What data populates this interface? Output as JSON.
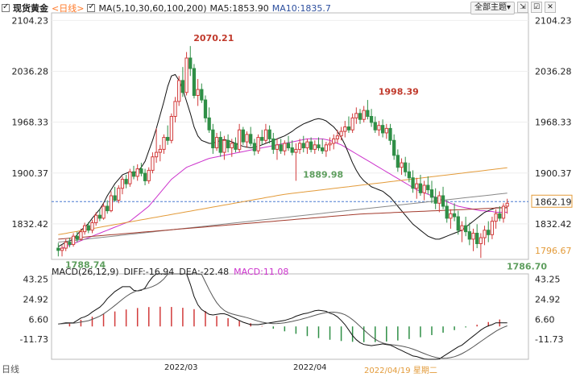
{
  "header": {
    "title": "现货黄金",
    "period": "<日线>",
    "ma_label": "MA(5,10,30,60,100,200)",
    "ma5": "MA5:1853.90",
    "ma10": "MA10:1835.7"
  },
  "toolbar": {
    "theme_label": "全部主题",
    "theme_arrow": "▾"
  },
  "icons": [
    "expand-icon",
    "checkbox-icon",
    "close-icon"
  ],
  "macd_header": {
    "label": "MACD(26,12,9)",
    "diff": "DIFF:-16.94",
    "dea": "DEA:-22.48",
    "macd": "MACD:11.08"
  },
  "bottom": {
    "period_label": "日线",
    "date": "2022/04/19 星期二"
  },
  "colors": {
    "up": "#d23b3b",
    "down": "#2f8f46",
    "ma5": "#111111",
    "ma10": "#3d5a99",
    "ma30": "#cc33cc",
    "ma60": "#e39b3a",
    "ma100": "#888888",
    "ma200": "#a33a2c",
    "macd_pos": "#d23b3b",
    "macd_neg": "#2f8f46"
  },
  "chart_data": {
    "type": "candlestick",
    "title": "现货黄金",
    "y_ticks": [
      "2104.23",
      "2036.28",
      "1968.33",
      "1900.37",
      "1832.42"
    ],
    "ylim": [
      1785,
      2110
    ],
    "x_labels": [
      "2022/03",
      "2022/04"
    ],
    "annotations": [
      {
        "text": "2070.21",
        "value": 2070.21,
        "index": 35
      },
      {
        "text": "1998.39",
        "value": 1998.39,
        "index": 84
      },
      {
        "text": "1889.98",
        "value": 1889.98,
        "index": 64
      },
      {
        "text": "1788.74",
        "value": 1788.74,
        "index": 1
      },
      {
        "text": "1786.70",
        "value": 1786.7,
        "index": 118
      }
    ],
    "price_tags": [
      {
        "text": "1862.19",
        "value": 1862.19
      },
      {
        "text": "1796.67",
        "value": 1796.67
      }
    ],
    "ohlc": [
      [
        1800,
        1807,
        1789,
        1797
      ],
      [
        1797,
        1804,
        1789,
        1800
      ],
      [
        1800,
        1812,
        1796,
        1808
      ],
      [
        1808,
        1814,
        1801,
        1805
      ],
      [
        1805,
        1820,
        1802,
        1816
      ],
      [
        1816,
        1822,
        1808,
        1812
      ],
      [
        1812,
        1826,
        1810,
        1822
      ],
      [
        1822,
        1834,
        1818,
        1830
      ],
      [
        1830,
        1835,
        1820,
        1824
      ],
      [
        1824,
        1838,
        1820,
        1834
      ],
      [
        1834,
        1848,
        1830,
        1844
      ],
      [
        1844,
        1852,
        1836,
        1840
      ],
      [
        1840,
        1860,
        1838,
        1856
      ],
      [
        1856,
        1864,
        1846,
        1850
      ],
      [
        1850,
        1876,
        1848,
        1870
      ],
      [
        1870,
        1882,
        1862,
        1864
      ],
      [
        1864,
        1884,
        1860,
        1880
      ],
      [
        1880,
        1896,
        1872,
        1892
      ],
      [
        1892,
        1898,
        1880,
        1886
      ],
      [
        1886,
        1906,
        1882,
        1902
      ],
      [
        1902,
        1910,
        1892,
        1896
      ],
      [
        1896,
        1912,
        1890,
        1906
      ],
      [
        1906,
        1914,
        1896,
        1900
      ],
      [
        1900,
        1906,
        1884,
        1890
      ],
      [
        1890,
        1908,
        1886,
        1904
      ],
      [
        1904,
        1928,
        1900,
        1922
      ],
      [
        1922,
        1960,
        1914,
        1928
      ],
      [
        1928,
        1938,
        1916,
        1932
      ],
      [
        1932,
        1952,
        1926,
        1948
      ],
      [
        1948,
        1964,
        1938,
        1944
      ],
      [
        1944,
        1980,
        1940,
        1976
      ],
      [
        1976,
        2002,
        1968,
        1996
      ],
      [
        1996,
        2030,
        1990,
        2024
      ],
      [
        2024,
        2042,
        2002,
        2008
      ],
      [
        2008,
        2062,
        2004,
        2054
      ],
      [
        2054,
        2070,
        2030,
        2040
      ],
      [
        2040,
        2046,
        2000,
        2004
      ],
      [
        2004,
        2026,
        1990,
        2012
      ],
      [
        2012,
        2020,
        1994,
        1998
      ],
      [
        1998,
        2004,
        1968,
        1974
      ],
      [
        1974,
        1988,
        1954,
        1958
      ],
      [
        1958,
        1966,
        1926,
        1934
      ],
      [
        1934,
        1954,
        1930,
        1948
      ],
      [
        1948,
        1956,
        1922,
        1928
      ],
      [
        1928,
        1950,
        1918,
        1944
      ],
      [
        1944,
        1952,
        1928,
        1934
      ],
      [
        1934,
        1946,
        1922,
        1940
      ],
      [
        1940,
        1948,
        1928,
        1932
      ],
      [
        1932,
        1966,
        1928,
        1958
      ],
      [
        1958,
        1962,
        1938,
        1942
      ],
      [
        1942,
        1956,
        1934,
        1952
      ],
      [
        1952,
        1962,
        1936,
        1940
      ],
      [
        1940,
        1946,
        1924,
        1930
      ],
      [
        1930,
        1952,
        1926,
        1948
      ],
      [
        1948,
        1958,
        1938,
        1944
      ],
      [
        1944,
        1966,
        1940,
        1958
      ],
      [
        1958,
        1964,
        1940,
        1946
      ],
      [
        1946,
        1954,
        1926,
        1932
      ],
      [
        1932,
        1946,
        1918,
        1938
      ],
      [
        1938,
        1946,
        1926,
        1930
      ],
      [
        1930,
        1944,
        1924,
        1940
      ],
      [
        1940,
        1950,
        1930,
        1934
      ],
      [
        1934,
        1944,
        1924,
        1928
      ],
      [
        1928,
        1940,
        1890,
        1932
      ],
      [
        1932,
        1946,
        1926,
        1940
      ],
      [
        1940,
        1950,
        1928,
        1934
      ],
      [
        1934,
        1946,
        1926,
        1942
      ],
      [
        1942,
        1948,
        1928,
        1932
      ],
      [
        1932,
        1944,
        1926,
        1938
      ],
      [
        1938,
        1948,
        1930,
        1934
      ],
      [
        1934,
        1946,
        1926,
        1930
      ],
      [
        1930,
        1942,
        1922,
        1938
      ],
      [
        1938,
        1948,
        1930,
        1940
      ],
      [
        1940,
        1952,
        1932,
        1946
      ],
      [
        1946,
        1958,
        1940,
        1950
      ],
      [
        1950,
        1962,
        1944,
        1956
      ],
      [
        1956,
        1970,
        1948,
        1962
      ],
      [
        1962,
        1976,
        1954,
        1958
      ],
      [
        1958,
        1980,
        1954,
        1974
      ],
      [
        1974,
        1988,
        1966,
        1980
      ],
      [
        1980,
        1986,
        1966,
        1972
      ],
      [
        1972,
        1990,
        1968,
        1984
      ],
      [
        1984,
        1998,
        1972,
        1976
      ],
      [
        1976,
        1986,
        1962,
        1968
      ],
      [
        1968,
        1976,
        1954,
        1958
      ],
      [
        1958,
        1970,
        1950,
        1964
      ],
      [
        1964,
        1972,
        1948,
        1954
      ],
      [
        1954,
        1966,
        1946,
        1960
      ],
      [
        1960,
        1966,
        1938,
        1944
      ],
      [
        1944,
        1952,
        1918,
        1924
      ],
      [
        1924,
        1932,
        1902,
        1908
      ],
      [
        1908,
        1920,
        1898,
        1914
      ],
      [
        1914,
        1922,
        1896,
        1902
      ],
      [
        1902,
        1914,
        1888,
        1894
      ],
      [
        1894,
        1904,
        1874,
        1880
      ],
      [
        1880,
        1894,
        1866,
        1886
      ],
      [
        1886,
        1898,
        1870,
        1874
      ],
      [
        1874,
        1890,
        1864,
        1884
      ],
      [
        1884,
        1896,
        1872,
        1878
      ],
      [
        1878,
        1890,
        1860,
        1868
      ],
      [
        1868,
        1880,
        1852,
        1860
      ],
      [
        1860,
        1876,
        1848,
        1870
      ],
      [
        1870,
        1882,
        1852,
        1856
      ],
      [
        1856,
        1864,
        1834,
        1840
      ],
      [
        1840,
        1852,
        1826,
        1846
      ],
      [
        1846,
        1860,
        1836,
        1842
      ],
      [
        1842,
        1850,
        1818,
        1824
      ],
      [
        1824,
        1836,
        1808,
        1830
      ],
      [
        1830,
        1842,
        1816,
        1822
      ],
      [
        1822,
        1834,
        1804,
        1812
      ],
      [
        1812,
        1826,
        1796,
        1820
      ],
      [
        1820,
        1832,
        1800,
        1806
      ],
      [
        1806,
        1820,
        1787,
        1814
      ],
      [
        1814,
        1830,
        1804,
        1824
      ],
      [
        1824,
        1836,
        1808,
        1818
      ],
      [
        1818,
        1842,
        1812,
        1836
      ],
      [
        1836,
        1852,
        1826,
        1846
      ],
      [
        1846,
        1856,
        1836,
        1840
      ],
      [
        1840,
        1860,
        1834,
        1856
      ],
      [
        1856,
        1866,
        1846,
        1860
      ]
    ],
    "ma5": [
      1802,
      1805,
      1808,
      1810,
      1812,
      1818,
      1824,
      1828,
      1833,
      1840,
      1846,
      1852,
      1860,
      1870,
      1878,
      1886,
      1892,
      1898,
      1900,
      1902,
      1900,
      1903,
      1908,
      1916,
      1930,
      1944,
      1960,
      1978,
      1996,
      2016,
      2030,
      2032,
      2024,
      2012,
      1996,
      1980,
      1962,
      1950,
      1944,
      1942,
      1940,
      1940,
      1942,
      1944,
      1945,
      1944,
      1942,
      1940,
      1938,
      1936,
      1935,
      1934,
      1935,
      1936,
      1938,
      1940,
      1942,
      1944,
      1946,
      1948,
      1950,
      1953,
      1956,
      1960,
      1963,
      1966,
      1968,
      1970,
      1972,
      1973,
      1972,
      1970,
      1966,
      1962,
      1956,
      1948,
      1938,
      1926,
      1914,
      1904,
      1896,
      1890,
      1886,
      1882,
      1880,
      1878,
      1876,
      1872,
      1868,
      1862,
      1856,
      1850,
      1844,
      1838,
      1832,
      1828,
      1824,
      1820,
      1816,
      1814,
      1812,
      1812,
      1814,
      1816,
      1818,
      1820,
      1822,
      1824,
      1828,
      1832,
      1836,
      1840,
      1844,
      1848,
      1850,
      1852,
      1854,
      1854,
      1854,
      1854
    ],
    "ma30": [
      1798,
      1800,
      1802,
      1804,
      1806,
      1808,
      1810,
      1812,
      1814,
      1816,
      1818,
      1820,
      1822,
      1824,
      1826,
      1828,
      1830,
      1832,
      1834,
      1836,
      1840,
      1844,
      1848,
      1852,
      1856,
      1862,
      1868,
      1874,
      1880,
      1886,
      1892,
      1896,
      1900,
      1904,
      1908,
      1910,
      1912,
      1914,
      1916,
      1918,
      1920,
      1921,
      1922,
      1923,
      1924,
      1925,
      1926,
      1927,
      1928,
      1929,
      1930,
      1931,
      1932,
      1933,
      1934,
      1935,
      1936,
      1937,
      1938,
      1939,
      1940,
      1941,
      1942,
      1943,
      1944,
      1945,
      1946,
      1946,
      1946,
      1946,
      1946,
      1945,
      1944,
      1942,
      1940,
      1938,
      1935,
      1932,
      1929,
      1926,
      1923,
      1920,
      1917,
      1914,
      1911,
      1908,
      1905,
      1902,
      1899,
      1896,
      1893,
      1890,
      1887,
      1884,
      1881,
      1878,
      1876,
      1874,
      1872,
      1870,
      1868,
      1866,
      1864,
      1862,
      1860,
      1858,
      1856,
      1855,
      1854,
      1853,
      1852,
      1851,
      1850,
      1850,
      1849,
      1849,
      1848,
      1848,
      1848,
      1848
    ]
  }
}
